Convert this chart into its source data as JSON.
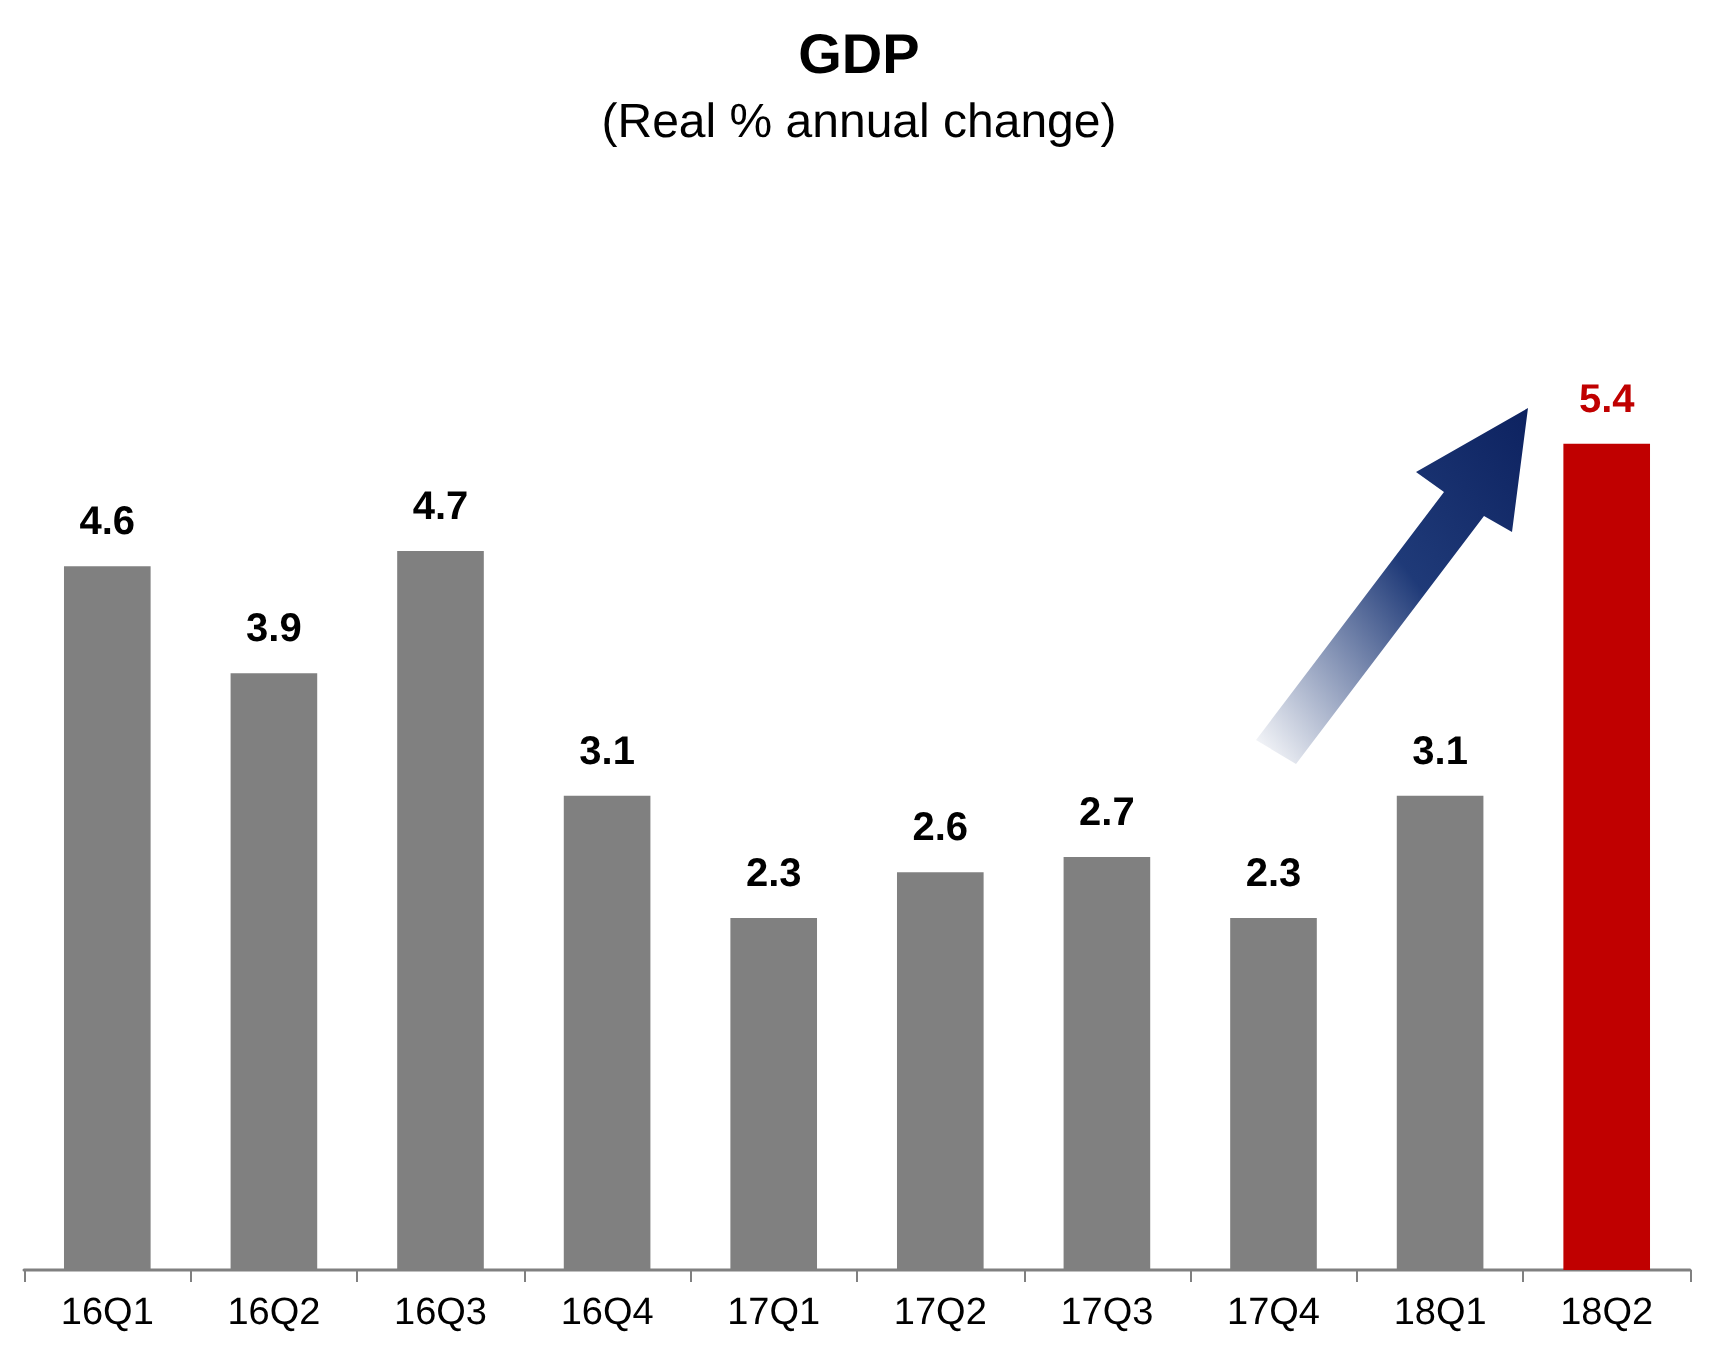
{
  "chart_data": {
    "type": "bar",
    "title": "GDP",
    "subtitle": "(Real % annual change)",
    "categories": [
      "16Q1",
      "16Q2",
      "16Q3",
      "16Q4",
      "17Q1",
      "17Q2",
      "17Q3",
      "17Q4",
      "18Q1",
      "18Q2"
    ],
    "values": [
      4.6,
      3.9,
      4.7,
      3.1,
      2.3,
      2.6,
      2.7,
      2.3,
      3.1,
      5.4
    ],
    "colors": [
      "#808080",
      "#808080",
      "#808080",
      "#808080",
      "#808080",
      "#808080",
      "#808080",
      "#808080",
      "#808080",
      "#c00000"
    ],
    "data_labels": true
  }
}
